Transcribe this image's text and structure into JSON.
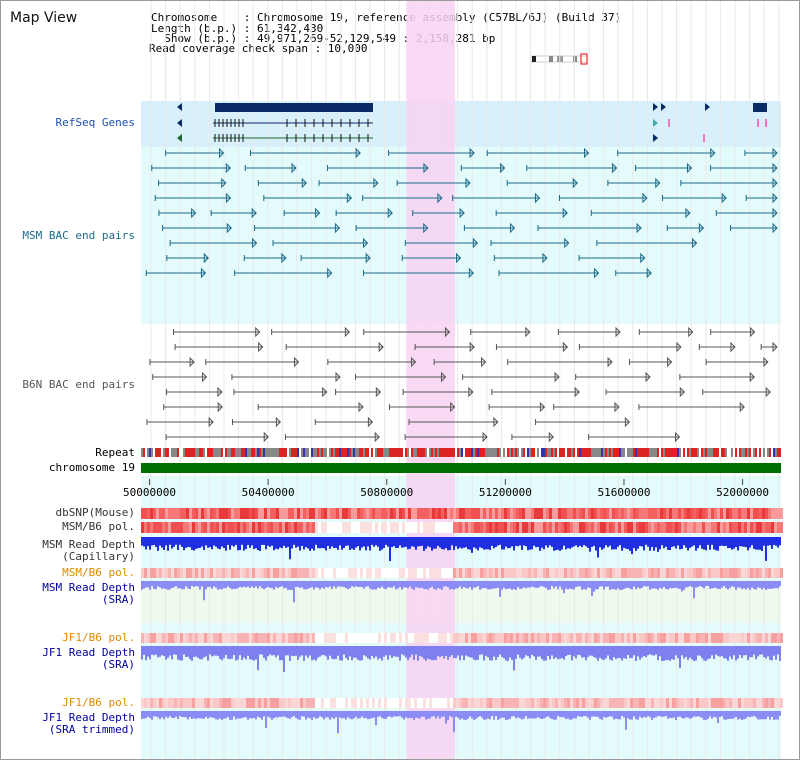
{
  "title": "Map View",
  "info": {
    "chromosome_line": "Chromosome    : Chromosome 19, reference assembly (C57BL/6J) (Build 37)",
    "length_line": "Length (b.p.) : 61,342,430",
    "show_line": "  Show (b.p.) : 49,971,269-52,129,549 : 2,158,281 bp",
    "coverage_line": "Read coverage check span : 10,000"
  },
  "tracks": {
    "refseq": "RefSeq Genes",
    "msm_bac": "MSM BAC end pairs",
    "b6n_bac": "B6N BAC end pairs",
    "repeat": "Repeat",
    "chromosome": "chromosome 19",
    "dbsnp": "dbSNP(Mouse)",
    "msm_b6_pol_1": "MSM/B6 pol.",
    "msm_depth_cap": "MSM Read Depth\n(Capillary)",
    "msm_b6_pol_2": "MSM/B6 pol.",
    "msm_depth_sra": "MSM Read Depth\n(SRA)",
    "jf1_b6_pol_1": "JF1/B6 pol.",
    "jf1_depth_sra": "JF1 Read Depth\n(SRA)",
    "jf1_b6_pol_2": "JF1/B6 pol.",
    "jf1_depth_trim": "JF1 Read Depth\n(SRA trimmed)"
  },
  "axis": {
    "ticks": [
      "50000000",
      "50400000",
      "50800000",
      "51200000",
      "51600000",
      "52000000"
    ],
    "tick_values": [
      50000000,
      50400000,
      50800000,
      51200000,
      51600000,
      52000000
    ],
    "range_start": 49971269,
    "range_end": 52129549
  },
  "highlight": {
    "start": 50866000,
    "end": 51030000
  },
  "colors": {
    "refseq_bg": "#d8f0fb",
    "pane_bg": "#e4fbfb",
    "highlight": "#f8d2f2",
    "msm_label": "#1a6a8a",
    "b6n_label": "#555555",
    "polymorphism_label": "#e08a00",
    "depth_label": "#0000a0",
    "chromosome_bar": "#007000",
    "depth_fill": "#2030e0",
    "sra_fill": "#8b8cf5"
  }
}
